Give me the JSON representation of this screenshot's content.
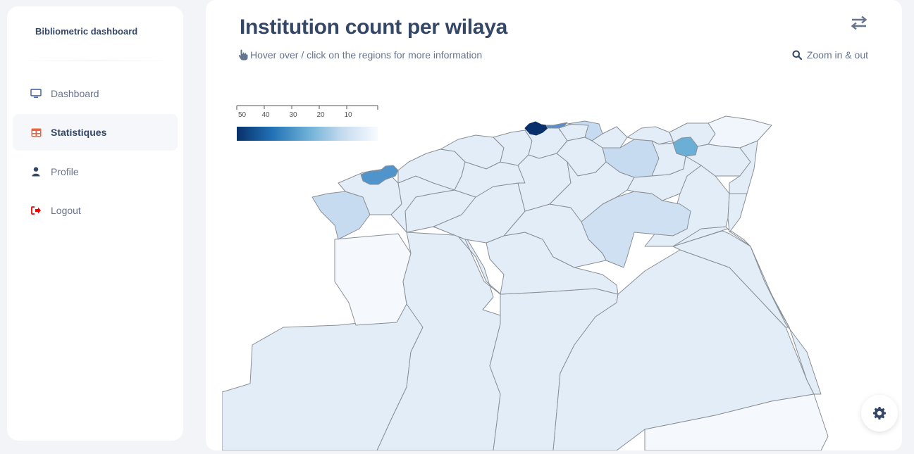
{
  "sidebar": {
    "brand": "Bibliometric dashboard",
    "items": [
      {
        "label": "Dashboard",
        "icon": "monitor-icon",
        "active": false
      },
      {
        "label": "Statistiques",
        "icon": "table-icon",
        "active": true
      },
      {
        "label": "Profile",
        "icon": "user-icon",
        "active": false
      },
      {
        "label": "Logout",
        "icon": "logout-icon",
        "active": false
      }
    ]
  },
  "main": {
    "title": "Institution count per wilaya",
    "hint": "Hover over / click on the regions for more information",
    "zoom_label": "Zoom in & out"
  },
  "legend": {
    "ticks": [
      "50",
      "40",
      "30",
      "20",
      "10"
    ],
    "colors": [
      "#08306b",
      "#2171b5",
      "#6baed6",
      "#c6dbef",
      "#f7fbff"
    ]
  },
  "colors": {
    "accent": "#344767",
    "muted": "#67748e",
    "logout": "#ea0606",
    "table_icon": "#f5603a"
  }
}
